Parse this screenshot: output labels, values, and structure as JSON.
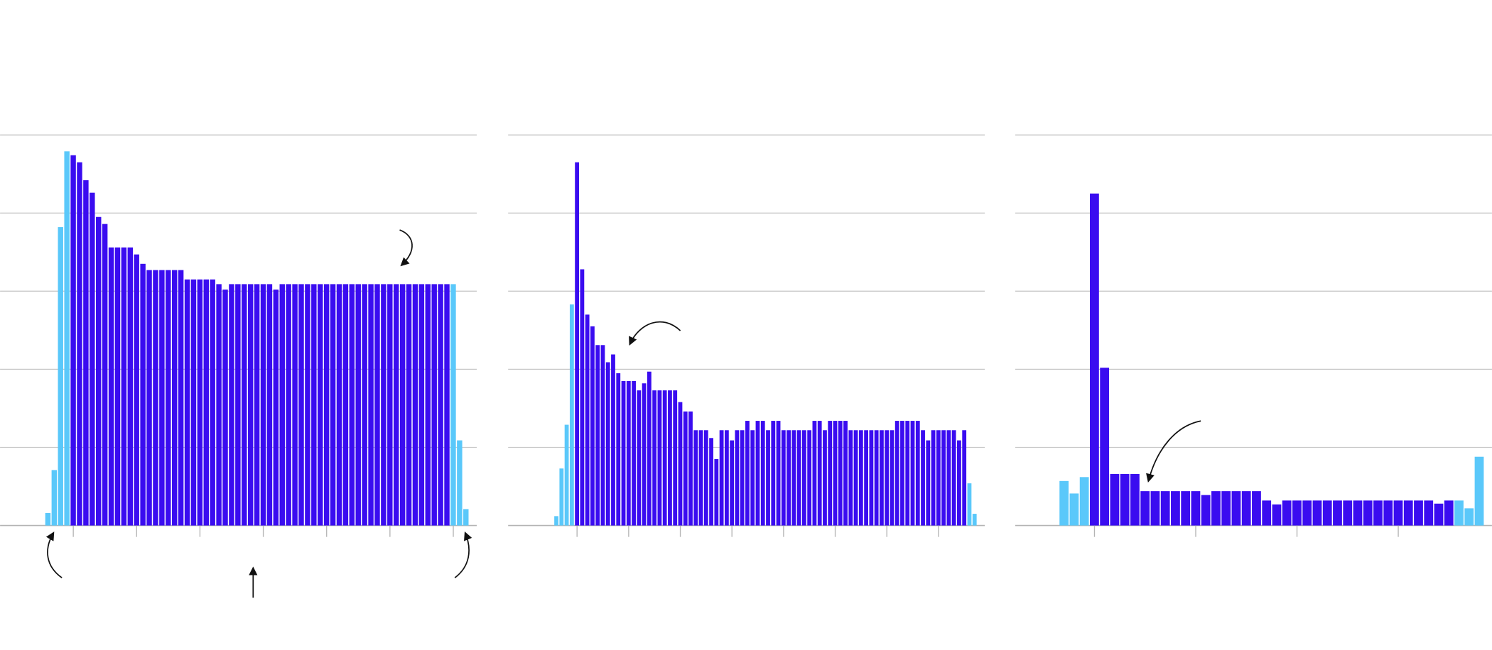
{
  "chart_data": [
    {
      "type": "bar",
      "values": [
        0.16,
        0.71,
        3.82,
        4.79,
        4.74,
        4.65,
        4.42,
        4.26,
        3.95,
        3.86,
        3.56,
        3.56,
        3.56,
        3.56,
        3.47,
        3.35,
        3.27,
        3.27,
        3.27,
        3.27,
        3.27,
        3.27,
        3.15,
        3.15,
        3.15,
        3.15,
        3.15,
        3.09,
        3.02,
        3.09,
        3.09,
        3.09,
        3.09,
        3.09,
        3.09,
        3.09,
        3.02,
        3.09,
        3.09,
        3.09,
        3.09,
        3.09,
        3.09,
        3.09,
        3.09,
        3.09,
        3.09,
        3.09,
        3.09,
        3.09,
        3.09,
        3.09,
        3.09,
        3.09,
        3.09,
        3.09,
        3.09,
        3.09,
        3.09,
        3.09,
        3.09,
        3.09,
        3.09,
        3.09,
        3.09,
        1.09,
        0.21
      ],
      "colors": [
        "#5ac8fa",
        "#5ac8fa",
        "#5ac8fa",
        "#5ac8fa",
        "#3a0cf0",
        "#3a0cf0",
        "#3a0cf0",
        "#3a0cf0",
        "#3a0cf0",
        "#3a0cf0",
        "#3a0cf0",
        "#3a0cf0",
        "#3a0cf0",
        "#3a0cf0",
        "#3a0cf0",
        "#3a0cf0",
        "#3a0cf0",
        "#3a0cf0",
        "#3a0cf0",
        "#3a0cf0",
        "#3a0cf0",
        "#3a0cf0",
        "#3a0cf0",
        "#3a0cf0",
        "#3a0cf0",
        "#3a0cf0",
        "#3a0cf0",
        "#3a0cf0",
        "#3a0cf0",
        "#3a0cf0",
        "#3a0cf0",
        "#3a0cf0",
        "#3a0cf0",
        "#3a0cf0",
        "#3a0cf0",
        "#3a0cf0",
        "#3a0cf0",
        "#3a0cf0",
        "#3a0cf0",
        "#3a0cf0",
        "#3a0cf0",
        "#3a0cf0",
        "#3a0cf0",
        "#3a0cf0",
        "#3a0cf0",
        "#3a0cf0",
        "#3a0cf0",
        "#3a0cf0",
        "#3a0cf0",
        "#3a0cf0",
        "#3a0cf0",
        "#3a0cf0",
        "#3a0cf0",
        "#3a0cf0",
        "#3a0cf0",
        "#3a0cf0",
        "#3a0cf0",
        "#3a0cf0",
        "#3a0cf0",
        "#3a0cf0",
        "#3a0cf0",
        "#3a0cf0",
        "#3a0cf0",
        "#3a0cf0",
        "#5ac8fa",
        "#5ac8fa",
        "#5ac8fa"
      ],
      "ylim": [
        0,
        5
      ],
      "yticks": [
        0,
        1,
        2,
        3,
        4,
        5
      ],
      "grid": true
    },
    {
      "type": "bar",
      "values": [
        0.12,
        0.73,
        1.29,
        2.83,
        4.65,
        3.28,
        2.7,
        2.55,
        2.31,
        2.31,
        2.09,
        2.19,
        1.95,
        1.85,
        1.85,
        1.85,
        1.73,
        1.82,
        1.97,
        1.73,
        1.73,
        1.73,
        1.73,
        1.73,
        1.58,
        1.46,
        1.46,
        1.22,
        1.22,
        1.22,
        1.12,
        0.85,
        1.22,
        1.22,
        1.09,
        1.22,
        1.22,
        1.34,
        1.22,
        1.34,
        1.34,
        1.22,
        1.34,
        1.34,
        1.22,
        1.22,
        1.22,
        1.22,
        1.22,
        1.22,
        1.34,
        1.34,
        1.22,
        1.34,
        1.34,
        1.34,
        1.34,
        1.22,
        1.22,
        1.22,
        1.22,
        1.22,
        1.22,
        1.22,
        1.22,
        1.22,
        1.34,
        1.34,
        1.34,
        1.34,
        1.34,
        1.22,
        1.09,
        1.22,
        1.22,
        1.22,
        1.22,
        1.22,
        1.09,
        1.22,
        0.54,
        0.15
      ],
      "colors": [
        "#5ac8fa",
        "#5ac8fa",
        "#5ac8fa",
        "#5ac8fa",
        "#3a0cf0",
        "#3a0cf0",
        "#3a0cf0",
        "#3a0cf0",
        "#3a0cf0",
        "#3a0cf0",
        "#3a0cf0",
        "#3a0cf0",
        "#3a0cf0",
        "#3a0cf0",
        "#3a0cf0",
        "#3a0cf0",
        "#3a0cf0",
        "#3a0cf0",
        "#3a0cf0",
        "#3a0cf0",
        "#3a0cf0",
        "#3a0cf0",
        "#3a0cf0",
        "#3a0cf0",
        "#3a0cf0",
        "#3a0cf0",
        "#3a0cf0",
        "#3a0cf0",
        "#3a0cf0",
        "#3a0cf0",
        "#3a0cf0",
        "#3a0cf0",
        "#3a0cf0",
        "#3a0cf0",
        "#3a0cf0",
        "#3a0cf0",
        "#3a0cf0",
        "#3a0cf0",
        "#3a0cf0",
        "#3a0cf0",
        "#3a0cf0",
        "#3a0cf0",
        "#3a0cf0",
        "#3a0cf0",
        "#3a0cf0",
        "#3a0cf0",
        "#3a0cf0",
        "#3a0cf0",
        "#3a0cf0",
        "#3a0cf0",
        "#3a0cf0",
        "#3a0cf0",
        "#3a0cf0",
        "#3a0cf0",
        "#3a0cf0",
        "#3a0cf0",
        "#3a0cf0",
        "#3a0cf0",
        "#3a0cf0",
        "#3a0cf0",
        "#3a0cf0",
        "#3a0cf0",
        "#3a0cf0",
        "#3a0cf0",
        "#3a0cf0",
        "#3a0cf0",
        "#3a0cf0",
        "#3a0cf0",
        "#3a0cf0",
        "#3a0cf0",
        "#3a0cf0",
        "#3a0cf0",
        "#3a0cf0",
        "#3a0cf0",
        "#3a0cf0",
        "#3a0cf0",
        "#3a0cf0",
        "#3a0cf0",
        "#3a0cf0",
        "#3a0cf0",
        "#5ac8fa",
        "#5ac8fa"
      ],
      "ylim": [
        0,
        5
      ],
      "yticks": [
        0,
        1,
        2,
        3,
        4,
        5
      ],
      "grid": true
    },
    {
      "type": "bar",
      "values": [
        0.57,
        0.41,
        0.62,
        4.25,
        2.02,
        0.66,
        0.66,
        0.66,
        0.44,
        0.44,
        0.44,
        0.44,
        0.44,
        0.44,
        0.39,
        0.44,
        0.44,
        0.44,
        0.44,
        0.44,
        0.32,
        0.27,
        0.32,
        0.32,
        0.32,
        0.32,
        0.32,
        0.32,
        0.32,
        0.32,
        0.32,
        0.32,
        0.32,
        0.32,
        0.32,
        0.32,
        0.32,
        0.28,
        0.32,
        0.32,
        0.22,
        0.88
      ],
      "colors": [
        "#5ac8fa",
        "#5ac8fa",
        "#5ac8fa",
        "#3a0cf0",
        "#3a0cf0",
        "#3a0cf0",
        "#3a0cf0",
        "#3a0cf0",
        "#3a0cf0",
        "#3a0cf0",
        "#3a0cf0",
        "#3a0cf0",
        "#3a0cf0",
        "#3a0cf0",
        "#3a0cf0",
        "#3a0cf0",
        "#3a0cf0",
        "#3a0cf0",
        "#3a0cf0",
        "#3a0cf0",
        "#3a0cf0",
        "#3a0cf0",
        "#3a0cf0",
        "#3a0cf0",
        "#3a0cf0",
        "#3a0cf0",
        "#3a0cf0",
        "#3a0cf0",
        "#3a0cf0",
        "#3a0cf0",
        "#3a0cf0",
        "#3a0cf0",
        "#3a0cf0",
        "#3a0cf0",
        "#3a0cf0",
        "#3a0cf0",
        "#3a0cf0",
        "#3a0cf0",
        "#3a0cf0",
        "#5ac8fa",
        "#5ac8fa",
        "#5ac8fa"
      ],
      "ylim": [
        0,
        5
      ],
      "yticks": [
        0,
        1,
        2,
        3,
        4,
        5
      ],
      "grid": true
    }
  ]
}
